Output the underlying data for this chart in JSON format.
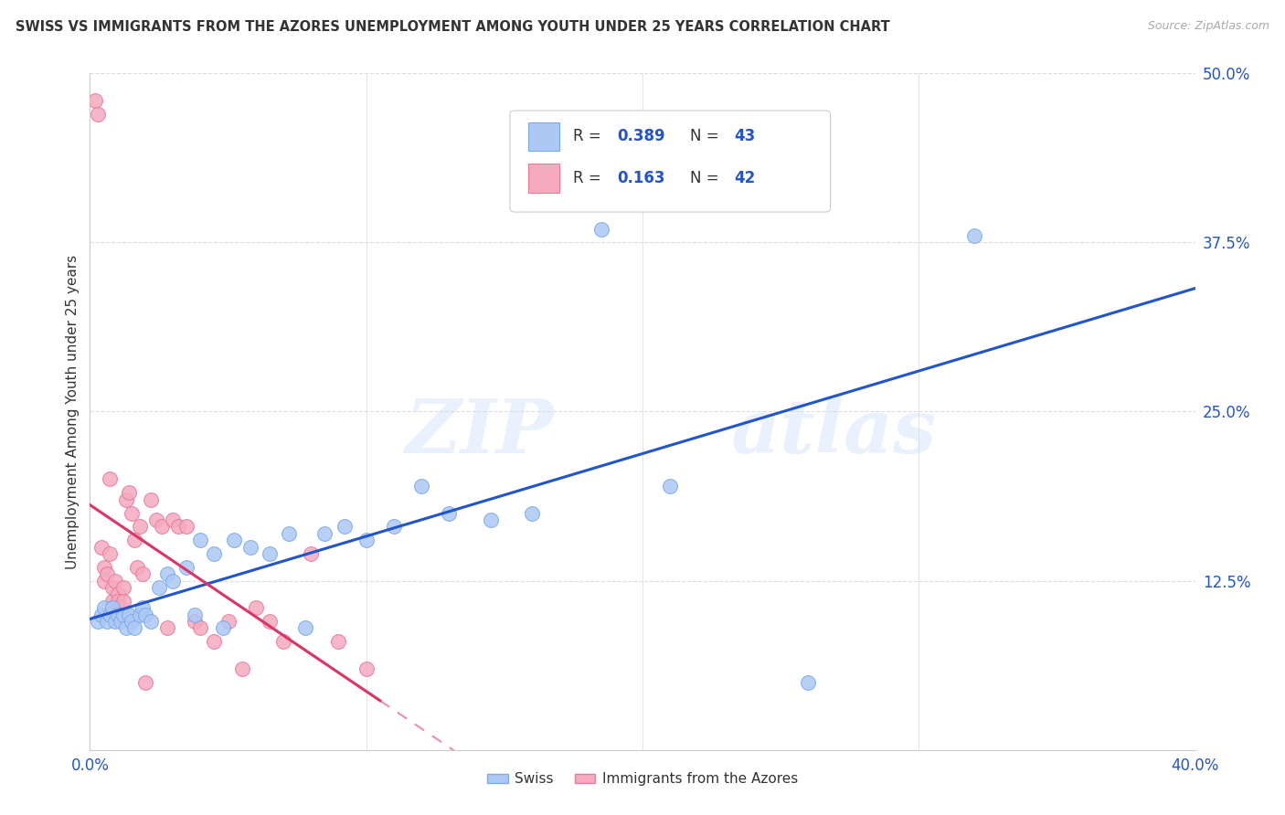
{
  "title": "SWISS VS IMMIGRANTS FROM THE AZORES UNEMPLOYMENT AMONG YOUTH UNDER 25 YEARS CORRELATION CHART",
  "source": "Source: ZipAtlas.com",
  "ylabel": "Unemployment Among Youth under 25 years",
  "x_min": 0.0,
  "x_max": 0.4,
  "y_min": 0.0,
  "y_max": 0.5,
  "swiss_color": "#adc8f5",
  "swiss_edge_color": "#7aaae8",
  "azores_color": "#f5aac0",
  "azores_edge_color": "#e87a9a",
  "regression_swiss_color": "#2255cc",
  "regression_azores_color": "#dd3366",
  "R_swiss": 0.389,
  "N_swiss": 43,
  "R_azores": 0.163,
  "N_azores": 42,
  "swiss_x": [
    0.003,
    0.004,
    0.005,
    0.006,
    0.007,
    0.008,
    0.009,
    0.01,
    0.011,
    0.012,
    0.013,
    0.014,
    0.015,
    0.016,
    0.018,
    0.019,
    0.02,
    0.022,
    0.025,
    0.028,
    0.03,
    0.035,
    0.038,
    0.04,
    0.045,
    0.048,
    0.052,
    0.058,
    0.065,
    0.072,
    0.078,
    0.085,
    0.092,
    0.1,
    0.11,
    0.12,
    0.13,
    0.145,
    0.16,
    0.185,
    0.21,
    0.26,
    0.32
  ],
  "swiss_y": [
    0.095,
    0.1,
    0.105,
    0.095,
    0.1,
    0.105,
    0.095,
    0.1,
    0.095,
    0.1,
    0.09,
    0.1,
    0.095,
    0.09,
    0.1,
    0.105,
    0.1,
    0.095,
    0.12,
    0.13,
    0.125,
    0.135,
    0.1,
    0.155,
    0.145,
    0.09,
    0.155,
    0.15,
    0.145,
    0.16,
    0.09,
    0.16,
    0.165,
    0.155,
    0.165,
    0.195,
    0.175,
    0.17,
    0.175,
    0.385,
    0.195,
    0.05,
    0.38
  ],
  "azores_x": [
    0.002,
    0.003,
    0.004,
    0.005,
    0.005,
    0.006,
    0.007,
    0.007,
    0.008,
    0.008,
    0.009,
    0.01,
    0.01,
    0.011,
    0.012,
    0.012,
    0.013,
    0.014,
    0.015,
    0.016,
    0.017,
    0.018,
    0.019,
    0.02,
    0.022,
    0.024,
    0.026,
    0.028,
    0.03,
    0.032,
    0.035,
    0.038,
    0.04,
    0.045,
    0.05,
    0.055,
    0.06,
    0.065,
    0.07,
    0.08,
    0.09,
    0.1
  ],
  "azores_y": [
    0.48,
    0.47,
    0.15,
    0.135,
    0.125,
    0.13,
    0.145,
    0.2,
    0.12,
    0.11,
    0.125,
    0.115,
    0.11,
    0.105,
    0.12,
    0.11,
    0.185,
    0.19,
    0.175,
    0.155,
    0.135,
    0.165,
    0.13,
    0.05,
    0.185,
    0.17,
    0.165,
    0.09,
    0.17,
    0.165,
    0.165,
    0.095,
    0.09,
    0.08,
    0.095,
    0.06,
    0.105,
    0.095,
    0.08,
    0.145,
    0.08,
    0.06
  ],
  "watermark_top": "ZIP",
  "watermark_bot": "atlas",
  "background_color": "#ffffff",
  "grid_color": "#dddddd",
  "legend_R_label": "R = ",
  "legend_N_label": "N = "
}
